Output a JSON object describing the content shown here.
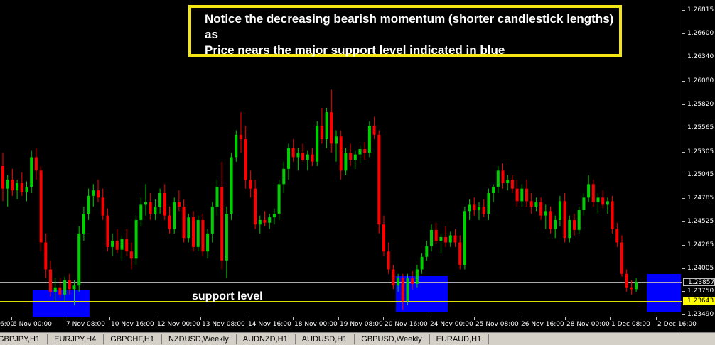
{
  "colors": {
    "background": "#000000",
    "bull_candle": "#00d000",
    "bear_candle": "#ff0000",
    "support_zone": "#0000ff",
    "annotation_border": "#f4e610",
    "support_line": "#ffff00",
    "current_price_line": "#c0c0c0"
  },
  "annotation": {
    "line1": "Notice the decreasing bearish momentum (shorter candlestick lengths) as",
    "line2": "Price nears the major support level indicated in blue"
  },
  "support_label": "support level",
  "price_scale": {
    "ticks": [
      "1.26815",
      "1.26600",
      "1.26340",
      "1.26080",
      "1.25820",
      "1.25565",
      "1.25305",
      "1.25045",
      "1.24785",
      "1.24525",
      "1.24265",
      "1.24005",
      "1.23750",
      "1.23490"
    ],
    "current_price": "1.23857",
    "support_price": "1.23643"
  },
  "time_axis": {
    "labels": [
      "6:00",
      "6 Nov 00:00",
      "7 Nov 08:00",
      "10 Nov 16:00",
      "12 Nov 00:00",
      "13 Nov 08:00",
      "14 Nov 16:00",
      "18 Nov 00:00",
      "19 Nov 08:00",
      "20 Nov 16:00",
      "24 Nov 00:00",
      "25 Nov 08:00",
      "26 Nov 16:00",
      "28 Nov 00:00",
      "1 Dec 08:00",
      "2 Dec 16:00"
    ]
  },
  "tabs": [
    "GBPJPY,H1",
    "EURJPY,H4",
    "GBPCHF,H1",
    "NZDUSD,Weekly",
    "AUDNZD,H1",
    "AUDUSD,H1",
    "GBPUSD,Weekly",
    "EURAUD,H1"
  ],
  "chart_data": {
    "type": "candlestick",
    "ylim": [
      1.2349,
      1.2689
    ],
    "support_level": 1.23643,
    "current_price": 1.23857,
    "candles": [
      [
        1.2515,
        1.253,
        1.2476,
        1.249
      ],
      [
        1.249,
        1.2505,
        1.247,
        1.25
      ],
      [
        1.25,
        1.2512,
        1.2482,
        1.2488
      ],
      [
        1.2488,
        1.25,
        1.2478,
        1.2496
      ],
      [
        1.2496,
        1.2508,
        1.2482,
        1.2486
      ],
      [
        1.2486,
        1.2498,
        1.2476,
        1.2492
      ],
      [
        1.2492,
        1.2532,
        1.2485,
        1.2525
      ],
      [
        1.2525,
        1.2535,
        1.25,
        1.251
      ],
      [
        1.251,
        1.2515,
        1.242,
        1.243
      ],
      [
        1.243,
        1.244,
        1.239,
        1.24
      ],
      [
        1.24,
        1.241,
        1.237,
        1.2375
      ],
      [
        1.2375,
        1.239,
        1.2365,
        1.238
      ],
      [
        1.238,
        1.239,
        1.2368,
        1.2372
      ],
      [
        1.2372,
        1.2392,
        1.2365,
        1.2388
      ],
      [
        1.2388,
        1.2395,
        1.2372,
        1.2378
      ],
      [
        1.2378,
        1.2388,
        1.236,
        1.2382
      ],
      [
        1.2382,
        1.2448,
        1.2375,
        1.244
      ],
      [
        1.244,
        1.247,
        1.2432,
        1.2462
      ],
      [
        1.2462,
        1.249,
        1.2455,
        1.2482
      ],
      [
        1.2482,
        1.2495,
        1.247,
        1.2488
      ],
      [
        1.2488,
        1.25,
        1.2475,
        1.248
      ],
      [
        1.248,
        1.249,
        1.2455,
        1.246
      ],
      [
        1.246,
        1.2468,
        1.242,
        1.2425
      ],
      [
        1.2425,
        1.244,
        1.2415,
        1.2432
      ],
      [
        1.2432,
        1.2445,
        1.2418,
        1.2422
      ],
      [
        1.2422,
        1.2438,
        1.241,
        1.2434
      ],
      [
        1.2434,
        1.2445,
        1.2415,
        1.242
      ],
      [
        1.242,
        1.243,
        1.24,
        1.2412
      ],
      [
        1.2412,
        1.246,
        1.2405,
        1.2455
      ],
      [
        1.2455,
        1.248,
        1.2448,
        1.2472
      ],
      [
        1.2472,
        1.2495,
        1.246,
        1.2475
      ],
      [
        1.2475,
        1.2485,
        1.2455,
        1.2462
      ],
      [
        1.2462,
        1.2478,
        1.2455,
        1.247
      ],
      [
        1.247,
        1.249,
        1.2462,
        1.2485
      ],
      [
        1.2485,
        1.2495,
        1.2455,
        1.246
      ],
      [
        1.246,
        1.247,
        1.244,
        1.2445
      ],
      [
        1.2445,
        1.248,
        1.244,
        1.2475
      ],
      [
        1.2475,
        1.2488,
        1.2465,
        1.247
      ],
      [
        1.247,
        1.2478,
        1.243,
        1.2435
      ],
      [
        1.2435,
        1.2462,
        1.243,
        1.2458
      ],
      [
        1.2458,
        1.2465,
        1.242,
        1.2425
      ],
      [
        1.2425,
        1.246,
        1.242,
        1.2455
      ],
      [
        1.2455,
        1.2462,
        1.2415,
        1.242
      ],
      [
        1.242,
        1.2445,
        1.2412,
        1.244
      ],
      [
        1.244,
        1.2475,
        1.243,
        1.247
      ],
      [
        1.247,
        1.25,
        1.246,
        1.2492
      ],
      [
        1.2492,
        1.252,
        1.24,
        1.241
      ],
      [
        1.241,
        1.247,
        1.239,
        1.2462
      ],
      [
        1.2462,
        1.253,
        1.2455,
        1.2525
      ],
      [
        1.2525,
        1.2555,
        1.252,
        1.255
      ],
      [
        1.255,
        1.2575,
        1.253,
        1.2545
      ],
      [
        1.2545,
        1.256,
        1.249,
        1.25
      ],
      [
        1.25,
        1.251,
        1.248,
        1.249
      ],
      [
        1.249,
        1.25,
        1.2445,
        1.245
      ],
      [
        1.245,
        1.246,
        1.244,
        1.2455
      ],
      [
        1.2455,
        1.2465,
        1.2448,
        1.2452
      ],
      [
        1.2452,
        1.2462,
        1.2445,
        1.2458
      ],
      [
        1.2458,
        1.2468,
        1.245,
        1.2462
      ],
      [
        1.2462,
        1.25,
        1.2455,
        1.2495
      ],
      [
        1.2495,
        1.252,
        1.2485,
        1.2512
      ],
      [
        1.2512,
        1.254,
        1.25,
        1.2535
      ],
      [
        1.2535,
        1.2545,
        1.252,
        1.2525
      ],
      [
        1.2525,
        1.2535,
        1.251,
        1.253
      ],
      [
        1.253,
        1.254,
        1.252,
        1.2522
      ],
      [
        1.2522,
        1.2532,
        1.251,
        1.2528
      ],
      [
        1.2528,
        1.2535,
        1.2515,
        1.252
      ],
      [
        1.252,
        1.2565,
        1.2515,
        1.256
      ],
      [
        1.256,
        1.258,
        1.254,
        1.2545
      ],
      [
        1.2545,
        1.258,
        1.2535,
        1.2575
      ],
      [
        1.2575,
        1.26,
        1.253,
        1.254
      ],
      [
        1.254,
        1.2555,
        1.252,
        1.2548
      ],
      [
        1.2548,
        1.2555,
        1.25,
        1.251
      ],
      [
        1.251,
        1.2535,
        1.2505,
        1.253
      ],
      [
        1.253,
        1.254,
        1.2515,
        1.2522
      ],
      [
        1.2522,
        1.2532,
        1.2512,
        1.2528
      ],
      [
        1.2528,
        1.2538,
        1.2518,
        1.2534
      ],
      [
        1.2534,
        1.2542,
        1.2522,
        1.253
      ],
      [
        1.253,
        1.2565,
        1.2525,
        1.256
      ],
      [
        1.256,
        1.257,
        1.2545,
        1.255
      ],
      [
        1.255,
        1.2555,
        1.244,
        1.245
      ],
      [
        1.245,
        1.246,
        1.2415,
        1.242
      ],
      [
        1.242,
        1.243,
        1.2395,
        1.24
      ],
      [
        1.24,
        1.2405,
        1.2378,
        1.2382
      ],
      [
        1.2382,
        1.2395,
        1.2375,
        1.239
      ],
      [
        1.239,
        1.2395,
        1.2355,
        1.2365
      ],
      [
        1.2365,
        1.2395,
        1.236,
        1.239
      ],
      [
        1.239,
        1.2398,
        1.2378,
        1.2384
      ],
      [
        1.2384,
        1.2405,
        1.238,
        1.24
      ],
      [
        1.24,
        1.2418,
        1.2395,
        1.2414
      ],
      [
        1.2414,
        1.2432,
        1.241,
        1.2426
      ],
      [
        1.2426,
        1.245,
        1.242,
        1.2444
      ],
      [
        1.2444,
        1.2452,
        1.2428,
        1.2432
      ],
      [
        1.2432,
        1.244,
        1.2418,
        1.2436
      ],
      [
        1.2436,
        1.2448,
        1.2425,
        1.243
      ],
      [
        1.243,
        1.2442,
        1.2425,
        1.2438
      ],
      [
        1.2438,
        1.2445,
        1.2425,
        1.243
      ],
      [
        1.243,
        1.2438,
        1.24,
        1.2405
      ],
      [
        1.2405,
        1.247,
        1.24,
        1.2465
      ],
      [
        1.2465,
        1.2478,
        1.2455,
        1.2472
      ],
      [
        1.2472,
        1.248,
        1.246,
        1.2466
      ],
      [
        1.2466,
        1.2475,
        1.2455,
        1.247
      ],
      [
        1.247,
        1.2478,
        1.2458,
        1.2462
      ],
      [
        1.2462,
        1.249,
        1.2455,
        1.2485
      ],
      [
        1.2485,
        1.2495,
        1.2475,
        1.2492
      ],
      [
        1.2492,
        1.2515,
        1.2485,
        1.251
      ],
      [
        1.251,
        1.2518,
        1.249,
        1.2496
      ],
      [
        1.2496,
        1.2505,
        1.2488,
        1.25
      ],
      [
        1.25,
        1.2505,
        1.2485,
        1.249
      ],
      [
        1.249,
        1.25,
        1.247,
        1.2476
      ],
      [
        1.2476,
        1.2495,
        1.247,
        1.249
      ],
      [
        1.249,
        1.25,
        1.247,
        1.2476
      ],
      [
        1.2476,
        1.2485,
        1.2462,
        1.247
      ],
      [
        1.247,
        1.248,
        1.2465,
        1.2475
      ],
      [
        1.2475,
        1.248,
        1.2455,
        1.246
      ],
      [
        1.246,
        1.2472,
        1.2445,
        1.2465
      ],
      [
        1.2465,
        1.247,
        1.244,
        1.2445
      ],
      [
        1.2445,
        1.246,
        1.2435,
        1.2455
      ],
      [
        1.2455,
        1.2482,
        1.2448,
        1.2476
      ],
      [
        1.2476,
        1.2485,
        1.243,
        1.2435
      ],
      [
        1.2435,
        1.246,
        1.243,
        1.2455
      ],
      [
        1.2455,
        1.2462,
        1.2438,
        1.2444
      ],
      [
        1.2444,
        1.247,
        1.244,
        1.2466
      ],
      [
        1.2466,
        1.2485,
        1.246,
        1.248
      ],
      [
        1.248,
        1.2505,
        1.2475,
        1.2495
      ],
      [
        1.2495,
        1.25,
        1.247,
        1.2475
      ],
      [
        1.2475,
        1.2485,
        1.2462,
        1.248
      ],
      [
        1.248,
        1.2488,
        1.2468,
        1.2472
      ],
      [
        1.2472,
        1.248,
        1.2462,
        1.2476
      ],
      [
        1.2476,
        1.2482,
        1.244,
        1.2445
      ],
      [
        1.2445,
        1.2452,
        1.2425,
        1.243
      ],
      [
        1.243,
        1.2438,
        1.2392,
        1.2395
      ],
      [
        1.2395,
        1.24,
        1.2375,
        1.238
      ],
      [
        1.238,
        1.2388,
        1.2372,
        1.2378
      ],
      [
        1.2378,
        1.239,
        1.2375,
        1.2386
      ]
    ]
  }
}
